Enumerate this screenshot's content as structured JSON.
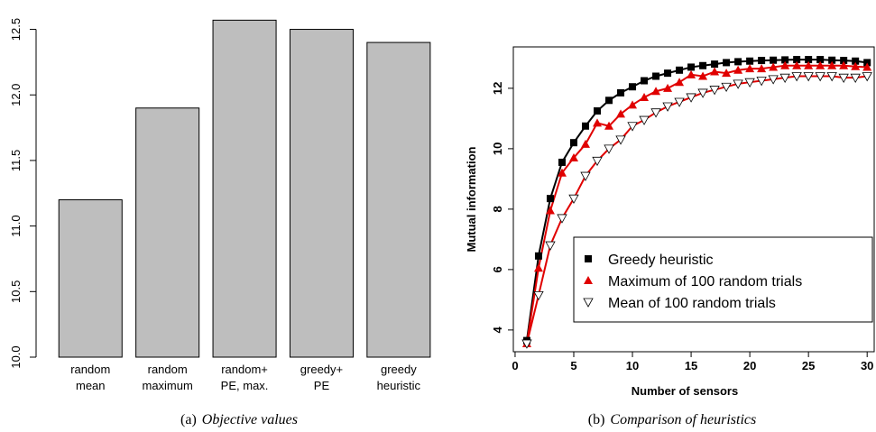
{
  "chart_data": [
    {
      "type": "bar",
      "categories": [
        [
          "random",
          "mean"
        ],
        [
          "random",
          "maximum"
        ],
        [
          "random+",
          "PE, max."
        ],
        [
          "greedy+",
          "PE"
        ],
        [
          "greedy",
          "heuristic"
        ]
      ],
      "values": [
        11.2,
        11.9,
        12.57,
        12.5,
        12.4
      ],
      "color": "#bebebe",
      "ylim": [
        10,
        12.6
      ],
      "yticks": [
        {
          "value": 10,
          "label": "10.0"
        },
        10.5,
        {
          "value": 11,
          "label": "11.0"
        },
        11.5,
        {
          "value": 12,
          "label": "12.0"
        },
        12.5
      ],
      "caption": {
        "label": "(a)",
        "text": "Objective values"
      }
    },
    {
      "type": "line",
      "x": [
        1,
        2,
        3,
        4,
        5,
        6,
        7,
        8,
        9,
        10,
        11,
        12,
        13,
        14,
        15,
        16,
        17,
        18,
        19,
        20,
        21,
        22,
        23,
        24,
        25,
        26,
        27,
        28,
        29,
        30
      ],
      "series": [
        {
          "name": "Greedy heuristic",
          "color": "#000000",
          "marker": "square",
          "values": [
            3.65,
            6.45,
            8.35,
            9.55,
            10.2,
            10.75,
            11.25,
            11.6,
            11.85,
            12.05,
            12.25,
            12.4,
            12.5,
            12.6,
            12.7,
            12.75,
            12.8,
            12.85,
            12.88,
            12.9,
            12.92,
            12.93,
            12.94,
            12.95,
            12.95,
            12.95,
            12.93,
            12.92,
            12.9,
            12.85
          ]
        },
        {
          "name": "Maximum of 100 random trials",
          "color": "#e00000",
          "marker": "triangle",
          "values": [
            3.55,
            6.05,
            7.95,
            9.2,
            9.7,
            10.15,
            10.85,
            10.75,
            11.15,
            11.45,
            11.7,
            11.9,
            12.0,
            12.2,
            12.45,
            12.4,
            12.55,
            12.5,
            12.6,
            12.65,
            12.65,
            12.7,
            12.75,
            12.75,
            12.75,
            12.75,
            12.75,
            12.75,
            12.72,
            12.7
          ]
        },
        {
          "name": "Mean of 100 random trials",
          "color": "#e00000",
          "marker": "triangle-down",
          "values": [
            3.55,
            5.15,
            6.8,
            7.7,
            8.35,
            9.1,
            9.6,
            10.0,
            10.3,
            10.75,
            10.95,
            11.2,
            11.4,
            11.55,
            11.7,
            11.85,
            11.95,
            12.05,
            12.15,
            12.2,
            12.25,
            12.3,
            12.35,
            12.4,
            12.4,
            12.4,
            12.4,
            12.35,
            12.35,
            12.4
          ]
        }
      ],
      "xlabel": "Number of sensors",
      "ylabel": "Mutual information",
      "xlim": [
        -0.15,
        30.6
      ],
      "ylim": [
        3.28,
        13.37
      ],
      "xticks": [
        0,
        5,
        10,
        15,
        20,
        25,
        30
      ],
      "yticks": [
        4,
        6,
        8,
        10,
        12
      ],
      "legend": "bottom-right",
      "caption": {
        "label": "(b)",
        "text": "Comparison of heuristics"
      }
    }
  ]
}
